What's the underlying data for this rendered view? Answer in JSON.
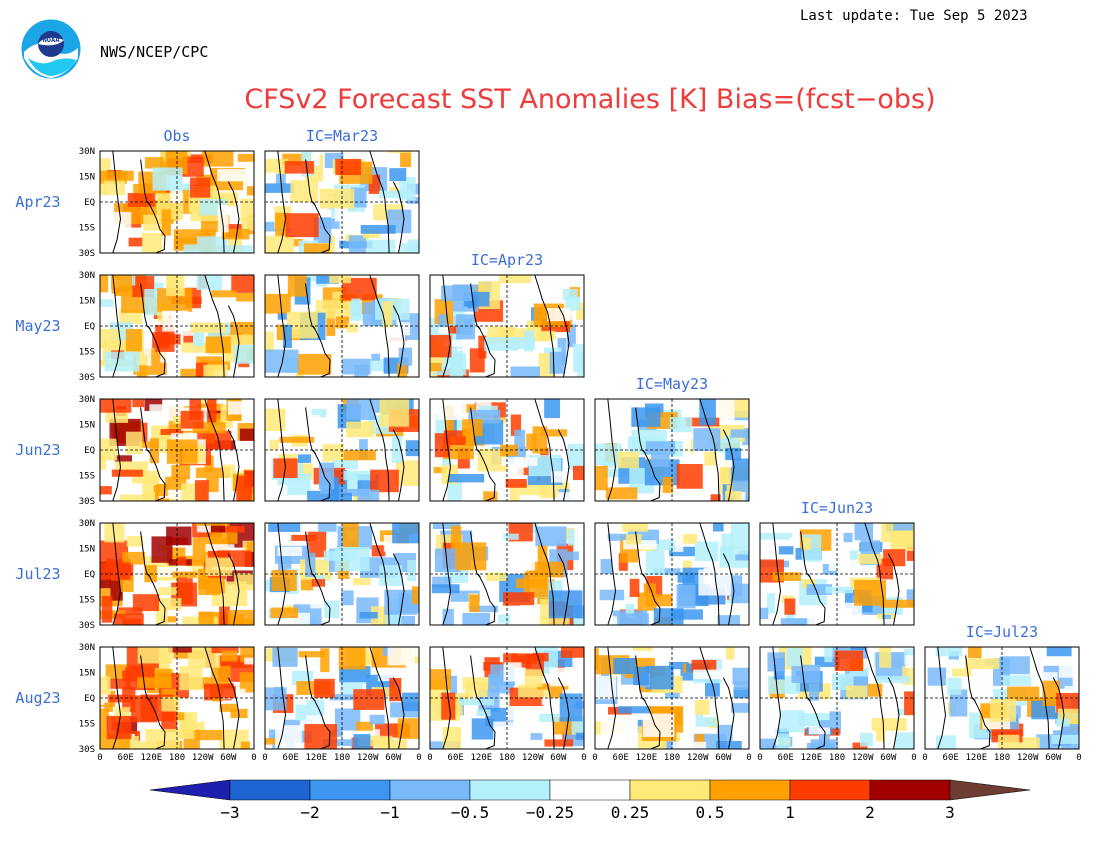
{
  "header": {
    "last_update": "Last update: Tue Sep 5 2023",
    "org": "NWS/NCEP/CPC",
    "logo_text": "NOAA",
    "title": "CFSv2 Forecast SST Anomalies [K] Bias=(fcst−obs)"
  },
  "colors": {
    "label_blue": "#3b6fd6",
    "title_red": "#ee3b3b"
  },
  "chart_data": {
    "type": "heatmap",
    "title": "CFSv2 Forecast SST Anomalies [K] Bias=(fcst−obs)",
    "rows": [
      "Apr23",
      "May23",
      "Jun23",
      "Jul23",
      "Aug23"
    ],
    "columns": [
      "Obs",
      "IC=Mar23",
      "IC=Apr23",
      "IC=May23",
      "IC=Jun23",
      "IC=Jul23"
    ],
    "lat_ticks": [
      "30N",
      "15N",
      "EQ",
      "15S",
      "30S"
    ],
    "lon_ticks": [
      "0",
      "60E",
      "120E",
      "180",
      "120W",
      "60W",
      "0"
    ],
    "colorbar": {
      "ticks": [
        "−3",
        "−2",
        "−1",
        "−0.5",
        "−0.25",
        "0.25",
        "0.5",
        "1",
        "2",
        "3"
      ],
      "colors": [
        "#1e1eaf",
        "#1e64d2",
        "#3c96f0",
        "#78b9fa",
        "#b4f0fa",
        "#ffffff",
        "#ffe978",
        "#ffa000",
        "#ff3c00",
        "#a00000",
        "#6e3c32"
      ]
    },
    "grid": {
      "Apr23": [
        "obs",
        "fcst",
        null,
        null,
        null,
        null
      ],
      "May23": [
        "obs",
        "fcst",
        "fcst",
        null,
        null,
        null
      ],
      "Jun23": [
        "obs",
        "fcst",
        "fcst",
        "fcst",
        null,
        null
      ],
      "Jul23": [
        "obs",
        "fcst",
        "fcst",
        "fcst",
        "fcst",
        null
      ],
      "Aug23": [
        "obs",
        "fcst",
        "fcst",
        "fcst",
        "fcst",
        "fcst"
      ]
    }
  }
}
